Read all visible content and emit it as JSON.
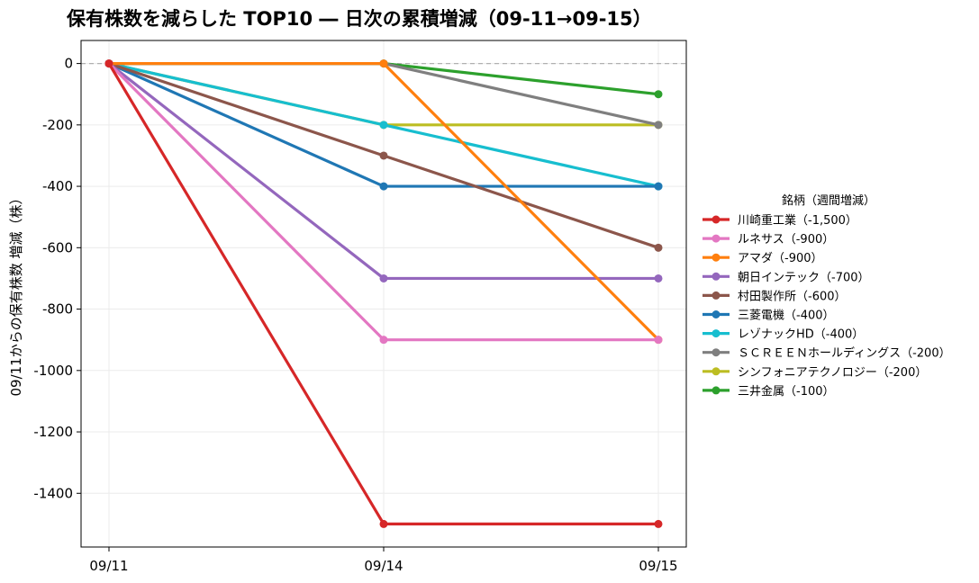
{
  "chart_data": {
    "type": "line",
    "title": "保有株数を減らした TOP10 ― 日次の累積増減（09-11→09-15）",
    "xlabel": "",
    "ylabel": "09/11からの保有株数 増減（株）",
    "x": [
      "09/11",
      "09/14",
      "09/15"
    ],
    "ylim": [
      -1575,
      75
    ],
    "yticks": [
      0,
      -200,
      -400,
      -600,
      -800,
      -1000,
      -1200,
      -1400
    ],
    "grid": true,
    "baseline": 0,
    "legend_title": "銘柄（週間増減）",
    "legend_position": "right",
    "series": [
      {
        "name": "川崎重工業（-1,500）",
        "color": "#d62728",
        "values": [
          0,
          -1500,
          -1500
        ]
      },
      {
        "name": "ルネサス（-900）",
        "color": "#e377c2",
        "values": [
          0,
          -900,
          -900
        ]
      },
      {
        "name": "アマダ（-900）",
        "color": "#ff7f0e",
        "values": [
          0,
          0,
          -900
        ]
      },
      {
        "name": "朝日インテック（-700）",
        "color": "#9467bd",
        "values": [
          0,
          -700,
          -700
        ]
      },
      {
        "name": "村田製作所（-600）",
        "color": "#8c564b",
        "values": [
          0,
          -300,
          -600
        ]
      },
      {
        "name": "三菱電機（-400）",
        "color": "#1f77b4",
        "values": [
          0,
          -400,
          -400
        ]
      },
      {
        "name": "レゾナックHD（-400）",
        "color": "#17becf",
        "values": [
          0,
          -200,
          -400
        ]
      },
      {
        "name": "ＳＣＲＥＥＮホールディングス（-200）",
        "color": "#7f7f7f",
        "values": [
          0,
          0,
          -200
        ]
      },
      {
        "name": "シンフォニアテクノロジー（-200）",
        "color": "#bcbd22",
        "values": [
          0,
          -200,
          -200
        ]
      },
      {
        "name": "三井金属（-100）",
        "color": "#2ca02c",
        "values": [
          0,
          0,
          -100
        ]
      }
    ]
  }
}
